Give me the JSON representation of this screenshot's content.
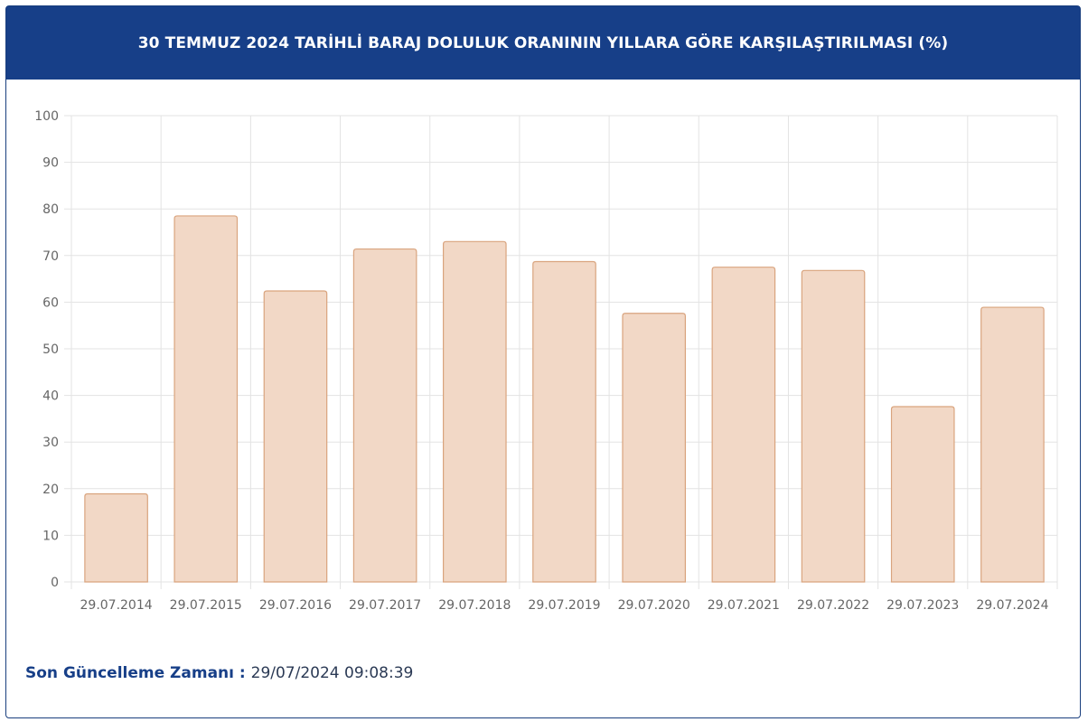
{
  "header": {
    "title": "30 TEMMUZ 2024 TARİHLİ BARAJ DOLULUK ORANININ YILLARA GÖRE KARŞILAŞTIRILMASI (%)"
  },
  "footer": {
    "label": "Son Güncelleme Zamanı",
    "separator": " : ",
    "value": "29/07/2024 09:08:39"
  },
  "colors": {
    "header_bg": "#173f88",
    "bar_fill": "#f2d8c6",
    "bar_stroke": "#d9a47e",
    "grid": "#e3e3e3",
    "tick_text": "#666666"
  },
  "chart_data": {
    "type": "bar",
    "categories": [
      "29.07.2014",
      "29.07.2015",
      "29.07.2016",
      "29.07.2017",
      "29.07.2018",
      "29.07.2019",
      "29.07.2020",
      "29.07.2021",
      "29.07.2022",
      "29.07.2023",
      "29.07.2024"
    ],
    "values": [
      18.9,
      78.5,
      62.4,
      71.4,
      73.0,
      68.7,
      57.6,
      67.5,
      66.8,
      37.6,
      58.9
    ],
    "ylim": [
      0,
      100
    ],
    "yticks": [
      0,
      10,
      20,
      30,
      40,
      50,
      60,
      70,
      80,
      90,
      100
    ],
    "grid": true
  }
}
